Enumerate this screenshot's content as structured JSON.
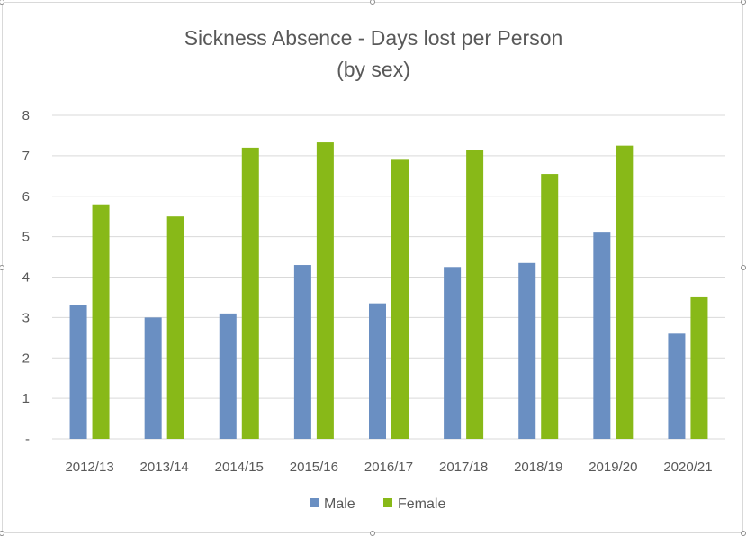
{
  "chart_data": {
    "type": "bar",
    "title": "Sickness Absence - Days lost per Person",
    "subtitle": "(by sex)",
    "categories": [
      "2012/13",
      "2013/14",
      "2014/15",
      "2015/16",
      "2016/17",
      "2017/18",
      "2018/19",
      "2019/20",
      "2020/21"
    ],
    "series": [
      {
        "name": "Male",
        "color": "#6a8fc2",
        "values": [
          3.3,
          3.0,
          3.1,
          4.3,
          3.35,
          4.25,
          4.35,
          5.1,
          2.6
        ]
      },
      {
        "name": "Female",
        "color": "#88b918",
        "values": [
          5.8,
          5.5,
          7.2,
          7.33,
          6.9,
          7.15,
          6.55,
          7.25,
          3.5
        ]
      }
    ],
    "ylim": [
      0,
      8
    ],
    "yticks": [
      {
        "value": 0,
        "label": "-"
      },
      {
        "value": 1,
        "label": "1"
      },
      {
        "value": 2,
        "label": "2"
      },
      {
        "value": 3,
        "label": "3"
      },
      {
        "value": 4,
        "label": "4"
      },
      {
        "value": 5,
        "label": "5"
      },
      {
        "value": 6,
        "label": "6"
      },
      {
        "value": 7,
        "label": "7"
      },
      {
        "value": 8,
        "label": "8"
      }
    ],
    "xlabel": "",
    "ylabel": "",
    "grid": true,
    "legend": "bottom"
  }
}
